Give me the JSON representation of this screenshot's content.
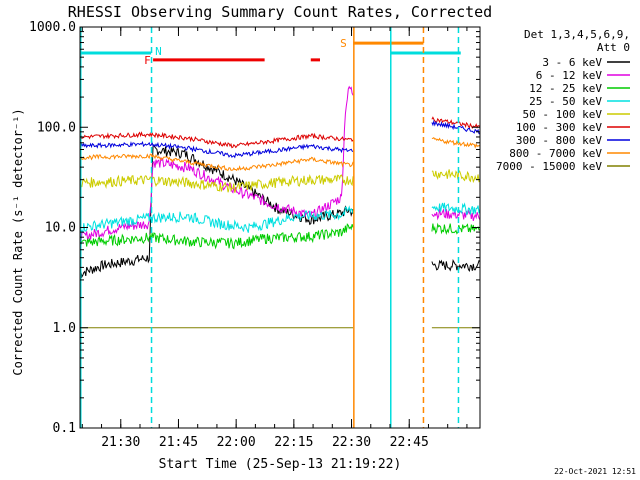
{
  "chart_data": {
    "type": "line",
    "title": "RHESSI Observing Summary Count Rates, Corrected",
    "xlabel": "Start Time (25-Sep-13 21:19:22)",
    "ylabel": "Corrected Count Rate (s⁻¹ detector⁻¹)",
    "yscale": "log",
    "ylim": [
      0.1,
      1000
    ],
    "yticks": [
      "0.1",
      "1.0",
      "10.0",
      "100.0",
      "1000.0"
    ],
    "xlim_minutes": [
      0,
      104
    ],
    "xticks": [
      {
        "label": "21:30",
        "minute": 10.6
      },
      {
        "label": "21:45",
        "minute": 25.6
      },
      {
        "label": "22:00",
        "minute": 40.6
      },
      {
        "label": "22:15",
        "minute": 55.6
      },
      {
        "label": "22:30",
        "minute": 70.6
      },
      {
        "label": "22:45",
        "minute": 85.6
      }
    ],
    "legend_header": [
      "Det 1,3,4,5,6,9,",
      "Att 0"
    ],
    "legend_position": "right",
    "series": [
      {
        "name": "3 - 6 keV",
        "color": "#000000",
        "x": [
          0,
          6,
          18,
          19,
          27,
          40,
          52,
          60,
          68,
          70,
          92,
          104
        ],
        "y": [
          3.5,
          4.2,
          5,
          60,
          55,
          30,
          15,
          12,
          14,
          15,
          4.2,
          4.2
        ]
      },
      {
        "name": "6 - 12 keV",
        "color": "#e000e0",
        "x": [
          0,
          10,
          18,
          19,
          28,
          40,
          50,
          60,
          68,
          69,
          70,
          92,
          104
        ],
        "y": [
          8,
          10,
          11,
          45,
          40,
          24,
          17,
          13,
          20,
          150,
          250,
          14,
          13
        ]
      },
      {
        "name": "12 - 25 keV",
        "color": "#00cc00",
        "x": [
          0,
          18,
          30,
          40,
          48,
          60,
          68,
          70,
          92,
          104
        ],
        "y": [
          7,
          8,
          7.2,
          7,
          7.8,
          8.2,
          9,
          10,
          10,
          9.5
        ]
      },
      {
        "name": "25 - 50 keV",
        "color": "#00e0e0",
        "x": [
          0,
          18,
          28,
          36,
          44,
          56,
          68,
          70,
          92,
          104
        ],
        "y": [
          10,
          12.5,
          13,
          11,
          10,
          13,
          13.5,
          15,
          16,
          15
        ]
      },
      {
        "name": "50 - 100 keV",
        "color": "#cccc00",
        "x": [
          0,
          18,
          28,
          40,
          50,
          60,
          70,
          92,
          104
        ],
        "y": [
          28,
          30,
          28,
          25,
          28,
          30,
          30,
          35,
          32
        ]
      },
      {
        "name": "100 - 300 keV",
        "color": "#dd0000",
        "x": [
          0,
          18,
          28,
          40,
          50,
          60,
          70,
          92,
          104
        ],
        "y": [
          80,
          85,
          78,
          65,
          73,
          82,
          75,
          120,
          100
        ]
      },
      {
        "name": "300 - 800 keV",
        "color": "#0000dd",
        "x": [
          0,
          18,
          28,
          40,
          50,
          60,
          70,
          92,
          104
        ],
        "y": [
          65,
          68,
          62,
          52,
          58,
          65,
          58,
          110,
          90
        ]
      },
      {
        "name": "800 - 7000 keV",
        "color": "#ff8800",
        "x": [
          0,
          18,
          28,
          40,
          50,
          60,
          70,
          92,
          104
        ],
        "y": [
          50,
          52,
          45,
          38,
          42,
          48,
          42,
          75,
          65
        ]
      },
      {
        "name": "7000 - 15000 keV",
        "color": "#808000",
        "x": [
          0,
          104
        ],
        "y": [
          1.0,
          1.0
        ]
      }
    ],
    "flag_bars": [
      {
        "label": "N",
        "color": "#00dddd",
        "x_start": 0,
        "x_end": 18.5,
        "level": 550
      },
      {
        "label": "N",
        "color": "#00dddd",
        "x_start": 80.8,
        "x_end": 99,
        "level": 550
      },
      {
        "label": "F",
        "color": "#ee0000",
        "x_start": 19,
        "x_end": 48,
        "level": 470
      },
      {
        "label": "F",
        "color": "#ee0000",
        "x_start": 60,
        "x_end": 62.4,
        "level": 470
      },
      {
        "label": "S",
        "color": "#ff8800",
        "x_start": 71,
        "x_end": 89.3,
        "level": 690
      }
    ],
    "vertical_lines": [
      {
        "minute": 0.2,
        "color": "#00dddd",
        "style": "solid"
      },
      {
        "minute": 18.6,
        "color": "#00dddd",
        "style": "dashed"
      },
      {
        "minute": 71.2,
        "color": "#ff8800",
        "style": "solid"
      },
      {
        "minute": 80.8,
        "color": "#00dddd",
        "style": "solid"
      },
      {
        "minute": 89.3,
        "color": "#ff8800",
        "style": "dashed"
      },
      {
        "minute": 98.4,
        "color": "#00dddd",
        "style": "dashed"
      }
    ],
    "gap_minutes": [
      71.2,
      91.5
    ]
  },
  "timestamp": "22-Oct-2021 12:51"
}
